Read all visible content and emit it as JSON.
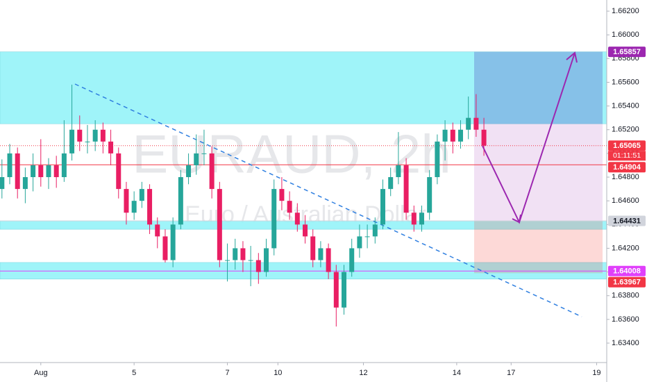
{
  "chart_data": {
    "type": "candlestick",
    "watermark": "EURAUD, 2h",
    "watermark_subtitle": "Euro / Australian Dollar",
    "countdown": "01:11:51",
    "up_color": "#26a69a",
    "down_color": "#e91e63",
    "ylim": [
      1.63236,
      1.66294
    ],
    "yticks": [
      {
        "value": 1.634,
        "label": "1.63400"
      },
      {
        "value": 1.636,
        "label": "1.63600"
      },
      {
        "value": 1.638,
        "label": "1.63800"
      },
      {
        "value": 1.64,
        "label": "1.64000"
      },
      {
        "value": 1.642,
        "label": "1.64200"
      },
      {
        "value": 1.644,
        "label": "1.64400"
      },
      {
        "value": 1.646,
        "label": "1.64600"
      },
      {
        "value": 1.648,
        "label": "1.64800"
      },
      {
        "value": 1.65,
        "label": "1.65000"
      },
      {
        "value": 1.652,
        "label": "1.65200"
      },
      {
        "value": 1.654,
        "label": "1.65400"
      },
      {
        "value": 1.656,
        "label": "1.65600"
      },
      {
        "value": 1.658,
        "label": "1.65800"
      },
      {
        "value": 1.66,
        "label": "1.66000"
      },
      {
        "value": 1.662,
        "label": "1.66200"
      }
    ],
    "xlim": [
      -0.5,
      155.6
    ],
    "xticks": [
      {
        "value": 10,
        "label": "Aug"
      },
      {
        "value": 34,
        "label": "5"
      },
      {
        "value": 58,
        "label": "7"
      },
      {
        "value": 71,
        "label": "10"
      },
      {
        "value": 93,
        "label": "12"
      },
      {
        "value": 117,
        "label": "14"
      },
      {
        "value": 131,
        "label": "17"
      },
      {
        "value": 153,
        "label": "19"
      }
    ],
    "x": [
      0,
      2,
      4,
      6,
      8,
      10,
      12,
      14,
      16,
      18,
      20,
      22,
      24,
      26,
      28,
      30,
      32,
      34,
      36,
      38,
      40,
      42,
      44,
      46,
      48,
      50,
      52,
      54,
      56,
      58,
      60,
      62,
      64,
      66,
      68,
      70,
      72,
      74,
      76,
      78,
      80,
      82,
      84,
      86,
      88,
      90,
      92,
      94,
      96,
      98,
      100,
      102,
      104,
      106,
      108,
      110,
      112,
      114,
      116,
      118,
      120,
      122,
      124
    ],
    "ohlc": [
      [
        1.647,
        1.6495,
        1.6462,
        1.648
      ],
      [
        1.648,
        1.6508,
        1.6474,
        1.65
      ],
      [
        1.65,
        1.6505,
        1.6462,
        1.647
      ],
      [
        1.647,
        1.6488,
        1.6458,
        1.648
      ],
      [
        1.648,
        1.65,
        1.6468,
        1.649
      ],
      [
        1.649,
        1.6512,
        1.6472,
        1.648
      ],
      [
        1.648,
        1.6496,
        1.647,
        1.649
      ],
      [
        1.649,
        1.6498,
        1.6471,
        1.648
      ],
      [
        1.648,
        1.6528,
        1.6476,
        1.65
      ],
      [
        1.65,
        1.6558,
        1.6494,
        1.652
      ],
      [
        1.652,
        1.6532,
        1.6502,
        1.651
      ],
      [
        1.651,
        1.6524,
        1.65,
        1.651
      ],
      [
        1.651,
        1.6528,
        1.6502,
        1.652
      ],
      [
        1.652,
        1.6526,
        1.65,
        1.651
      ],
      [
        1.651,
        1.652,
        1.649,
        1.65
      ],
      [
        1.65,
        1.6505,
        1.6462,
        1.647
      ],
      [
        1.647,
        1.6476,
        1.644,
        1.645
      ],
      [
        1.645,
        1.6468,
        1.6444,
        1.646
      ],
      [
        1.646,
        1.6476,
        1.6454,
        1.647
      ],
      [
        1.647,
        1.6474,
        1.6432,
        1.644
      ],
      [
        1.644,
        1.6446,
        1.642,
        1.643
      ],
      [
        1.643,
        1.6436,
        1.6408,
        1.641
      ],
      [
        1.641,
        1.6446,
        1.6404,
        1.644
      ],
      [
        1.644,
        1.6486,
        1.6436,
        1.648
      ],
      [
        1.648,
        1.65,
        1.6474,
        1.649
      ],
      [
        1.649,
        1.6516,
        1.6482,
        1.65
      ],
      [
        1.65,
        1.652,
        1.649,
        1.65
      ],
      [
        1.65,
        1.6506,
        1.6462,
        1.647
      ],
      [
        1.647,
        1.6476,
        1.6404,
        1.641
      ],
      [
        1.641,
        1.6424,
        1.6392,
        1.641
      ],
      [
        1.641,
        1.6428,
        1.6402,
        1.642
      ],
      [
        1.642,
        1.6426,
        1.64,
        1.641
      ],
      [
        1.641,
        1.6422,
        1.6388,
        1.641
      ],
      [
        1.641,
        1.6416,
        1.639,
        1.64
      ],
      [
        1.64,
        1.6428,
        1.6396,
        1.642
      ],
      [
        1.642,
        1.6478,
        1.6414,
        1.647
      ],
      [
        1.647,
        1.648,
        1.6452,
        1.646
      ],
      [
        1.646,
        1.6468,
        1.6444,
        1.645
      ],
      [
        1.645,
        1.6458,
        1.6434,
        1.644
      ],
      [
        1.644,
        1.6448,
        1.6424,
        1.643
      ],
      [
        1.643,
        1.6436,
        1.6404,
        1.641
      ],
      [
        1.641,
        1.6426,
        1.6404,
        1.642
      ],
      [
        1.642,
        1.6424,
        1.6394,
        1.64
      ],
      [
        1.64,
        1.6406,
        1.6354,
        1.637
      ],
      [
        1.637,
        1.6406,
        1.6364,
        1.64
      ],
      [
        1.64,
        1.6428,
        1.6396,
        1.642
      ],
      [
        1.642,
        1.644,
        1.6412,
        1.643
      ],
      [
        1.643,
        1.644,
        1.642,
        1.643
      ],
      [
        1.643,
        1.6446,
        1.6424,
        1.644
      ],
      [
        1.644,
        1.6478,
        1.6436,
        1.647
      ],
      [
        1.647,
        1.6488,
        1.6464,
        1.648
      ],
      [
        1.648,
        1.6518,
        1.6474,
        1.649
      ],
      [
        1.649,
        1.6496,
        1.6444,
        1.645
      ],
      [
        1.645,
        1.6456,
        1.6434,
        1.644
      ],
      [
        1.644,
        1.6456,
        1.6434,
        1.645
      ],
      [
        1.645,
        1.6486,
        1.6444,
        1.648
      ],
      [
        1.648,
        1.6516,
        1.6474,
        1.651
      ],
      [
        1.651,
        1.6528,
        1.6494,
        1.652
      ],
      [
        1.652,
        1.6526,
        1.65,
        1.651
      ],
      [
        1.651,
        1.6528,
        1.6504,
        1.652
      ],
      [
        1.652,
        1.6548,
        1.6512,
        1.653
      ],
      [
        1.653,
        1.655,
        1.6514,
        1.652
      ],
      [
        1.652,
        1.653,
        1.6498,
        1.65065
      ]
    ],
    "zones": [
      {
        "low": 1.6525,
        "high": 1.65857,
        "color": "#8ef2f8"
      },
      {
        "low": 1.6394,
        "high": 1.6408,
        "color": "#8ef2f8"
      },
      {
        "low": 1.6436,
        "high": 1.64431,
        "color": "#8ef2f8"
      }
    ],
    "position": {
      "target": 1.65857,
      "entry": 1.64431,
      "stop": 1.6399,
      "profit_color": "#9c27b0",
      "stop_color": "#f44336"
    },
    "price_labels": [
      {
        "value": 1.65857,
        "color": "#9c27b0",
        "line": "none"
      },
      {
        "value": 1.65065,
        "color": "#f23645",
        "line": "dotted"
      },
      {
        "value": 1.64904,
        "color": "#f23645",
        "line": "solid"
      },
      {
        "value": 1.64431,
        "color": "#d1d4dc",
        "line": "solid"
      },
      {
        "value": 1.64008,
        "color": "#e040fb",
        "line": "solid"
      },
      {
        "value": 1.63967,
        "color": "#f23645",
        "line": "none"
      }
    ]
  }
}
